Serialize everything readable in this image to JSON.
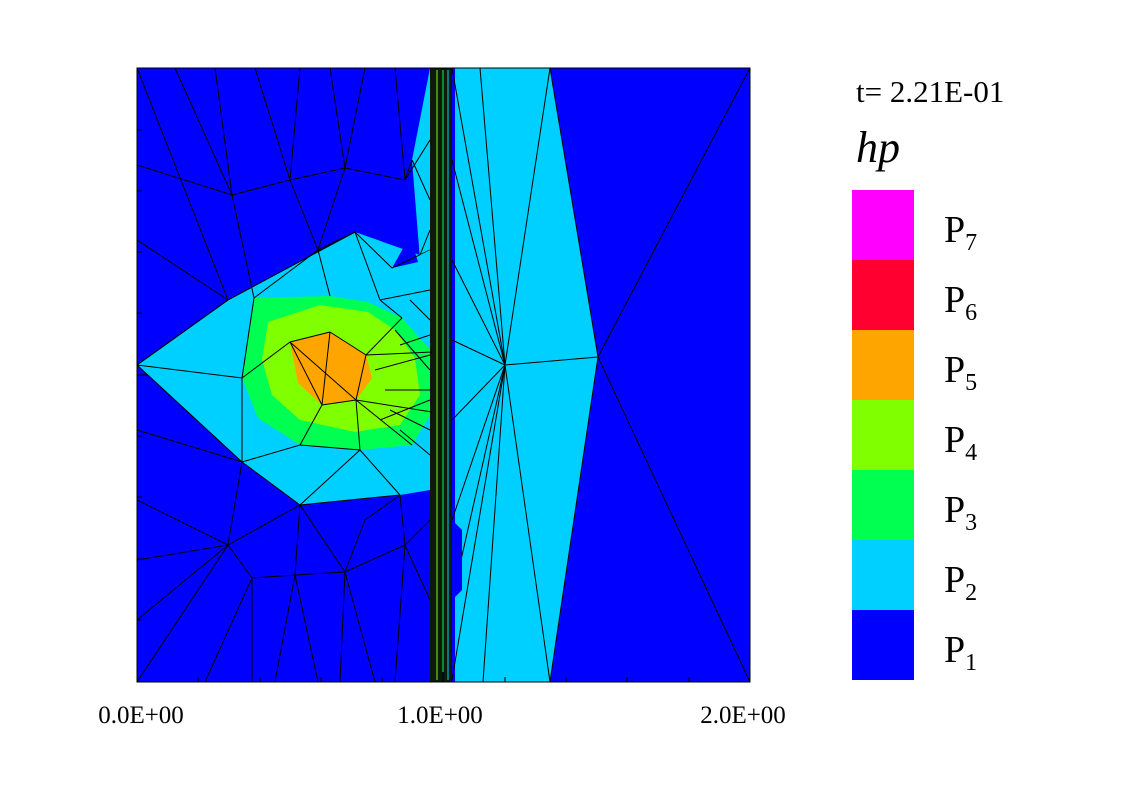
{
  "plot": {
    "time_label": "t= 2.21E-01",
    "legend_title": "hp",
    "x_ticks": [
      "0.0E+00",
      "1.0E+00",
      "2.0E+00"
    ]
  },
  "legend": [
    {
      "base": "P",
      "order": "7",
      "color": "#ff00ff"
    },
    {
      "base": "P",
      "order": "6",
      "color": "#ff0030"
    },
    {
      "base": "P",
      "order": "5",
      "color": "#ffa500"
    },
    {
      "base": "P",
      "order": "4",
      "color": "#80ff00"
    },
    {
      "base": "P",
      "order": "3",
      "color": "#00ff50"
    },
    {
      "base": "P",
      "order": "2",
      "color": "#00d0ff"
    },
    {
      "base": "P",
      "order": "1",
      "color": "#0000ff"
    }
  ]
}
